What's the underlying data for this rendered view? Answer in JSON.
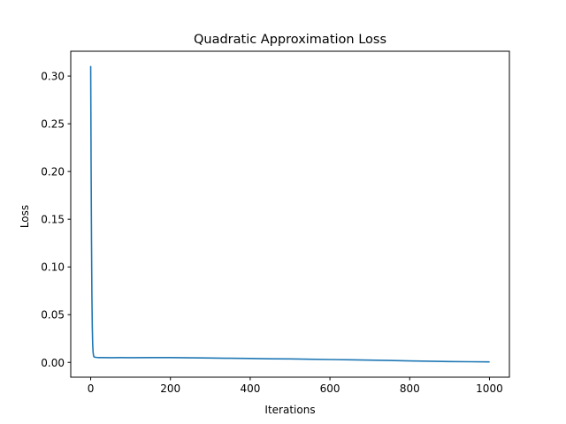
{
  "chart_data": {
    "type": "line",
    "title": "Quadratic Approximation Loss",
    "xlabel": "Iterations",
    "ylabel": "Loss",
    "xlim": [
      -50,
      1050
    ],
    "ylim": [
      -0.0155,
      0.326
    ],
    "grid": false,
    "legend": "none",
    "x_ticks": [
      0,
      200,
      400,
      600,
      800,
      1000
    ],
    "x_tick_labels": [
      "0",
      "200",
      "400",
      "600",
      "800",
      "1000"
    ],
    "y_ticks": [
      0.0,
      0.05,
      0.1,
      0.15,
      0.2,
      0.25,
      0.3
    ],
    "y_tick_labels": [
      "0.00",
      "0.05",
      "0.10",
      "0.15",
      "0.20",
      "0.25",
      "0.30"
    ],
    "series": [
      {
        "color": "#1f77b4",
        "x": [
          0,
          1,
          2,
          3,
          4,
          5,
          6,
          7,
          8,
          10,
          15,
          20,
          30,
          50,
          75,
          100,
          150,
          200,
          250,
          300,
          350,
          400,
          450,
          500,
          550,
          600,
          650,
          700,
          750,
          800,
          850,
          900,
          950,
          999
        ],
        "y": [
          0.31,
          0.21,
          0.13,
          0.072,
          0.038,
          0.019,
          0.011,
          0.0075,
          0.006,
          0.0055,
          0.0052,
          0.005,
          0.005,
          0.0049,
          0.005,
          0.0049,
          0.005,
          0.005,
          0.0048,
          0.0046,
          0.0043,
          0.0041,
          0.0038,
          0.0036,
          0.0033,
          0.003,
          0.0027,
          0.0024,
          0.002,
          0.0016,
          0.0012,
          0.0009,
          0.0007,
          0.0005
        ]
      }
    ]
  }
}
